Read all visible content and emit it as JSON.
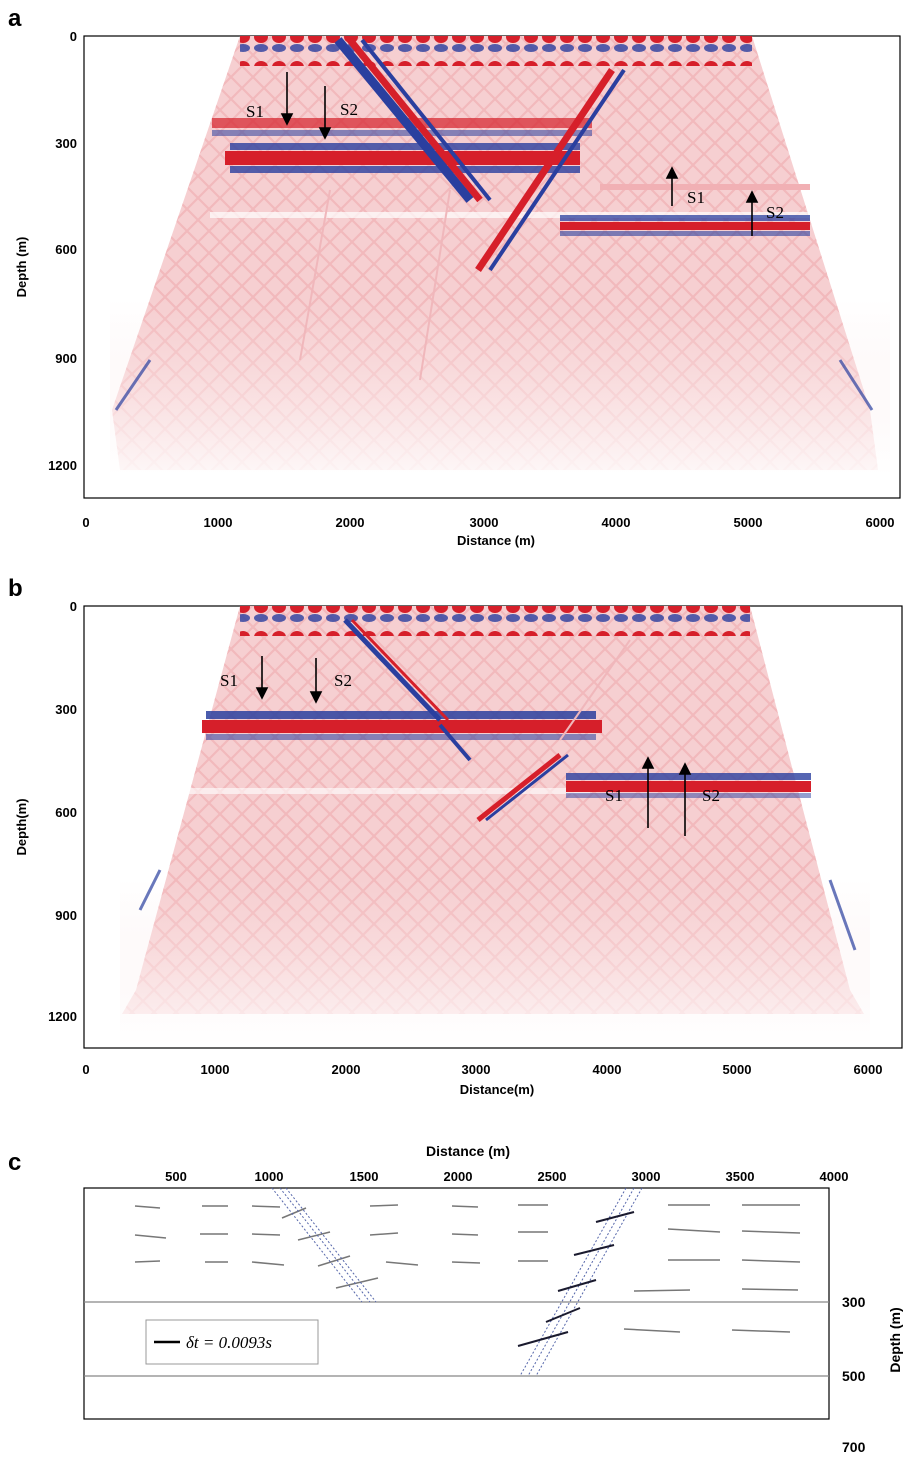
{
  "panels": [
    {
      "letter": "a",
      "xlabel": "Distance (m)",
      "ylabel": "Depth (m)",
      "xticks": [
        "0",
        "1000",
        "2000",
        "3000",
        "4000",
        "5000",
        "6000"
      ],
      "yticks": [
        "0",
        "300",
        "600",
        "900",
        "1200"
      ],
      "annotations": [
        "S1",
        "S2",
        "S1",
        "S2"
      ]
    },
    {
      "letter": "b",
      "xlabel": "Distance(m)",
      "ylabel": "Depth(m)",
      "xticks": [
        "0",
        "1000",
        "2000",
        "3000",
        "4000",
        "5000",
        "6000"
      ],
      "yticks": [
        "0",
        "300",
        "600",
        "900",
        "1200"
      ],
      "annotations": [
        "S1",
        "S2",
        "S1",
        "S2"
      ]
    },
    {
      "letter": "c",
      "xlabel": "Distance (m)",
      "ylabel": "Depth (m)",
      "xticks": [
        "500",
        "1000",
        "1500",
        "2000",
        "2500",
        "3000",
        "3500",
        "4000"
      ],
      "yticks": [
        "300",
        "500",
        "700"
      ],
      "legend": "δt = 0.0093s"
    }
  ],
  "colors": {
    "red": "#d61f2a",
    "blue": "#2a3f9f",
    "pink": "#f4c7c9",
    "light_pink": "#fae3e4"
  }
}
